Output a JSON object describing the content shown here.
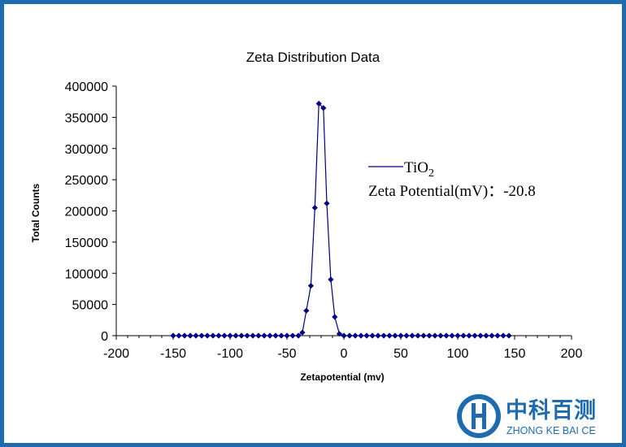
{
  "chart_data": {
    "type": "line",
    "title": "Zeta Distribution Data",
    "xlabel": "Zetapotential (mv)",
    "ylabel": "Total Counts",
    "xlim": [
      -200,
      200
    ],
    "ylim": [
      0,
      400000
    ],
    "xticks": [
      "-200",
      "-150",
      "-100",
      "-50",
      "0",
      "50",
      "100",
      "150",
      "200"
    ],
    "yticks": [
      "0",
      "50000",
      "100000",
      "150000",
      "200000",
      "250000",
      "300000",
      "350000",
      "400000"
    ],
    "series": [
      {
        "name": "TiO2",
        "color": "#00007f",
        "marker": "diamond",
        "x": [
          -150,
          -145,
          -140,
          -135,
          -130,
          -125,
          -120,
          -115,
          -110,
          -105,
          -100,
          -95,
          -90,
          -85,
          -80,
          -75,
          -70,
          -65,
          -60,
          -55,
          -50,
          -45,
          -40,
          -36.5,
          -33,
          -29,
          -25.5,
          -22,
          -18,
          -15,
          -11.5,
          -8,
          -4,
          0,
          5,
          10,
          15,
          20,
          25,
          30,
          35,
          40,
          45,
          50,
          55,
          60,
          65,
          70,
          75,
          80,
          85,
          90,
          95,
          100,
          105,
          110,
          115,
          120,
          125,
          130,
          135,
          140,
          145
        ],
        "y": [
          0,
          0,
          0,
          0,
          0,
          0,
          0,
          0,
          0,
          0,
          0,
          0,
          0,
          0,
          0,
          0,
          0,
          0,
          0,
          0,
          0,
          0,
          0,
          5000,
          40000,
          80000,
          205000,
          372000,
          365000,
          212000,
          90000,
          30000,
          3000,
          0,
          0,
          0,
          0,
          0,
          0,
          0,
          0,
          0,
          0,
          0,
          0,
          0,
          0,
          0,
          0,
          0,
          0,
          0,
          0,
          0,
          0,
          0,
          0,
          0,
          0,
          0,
          0,
          0,
          0
        ]
      }
    ],
    "legend": {
      "series_prefix": "TiO",
      "series_subscript": "2",
      "annotation_label": "Zeta Potential(mV)：",
      "annotation_value": "-20.8"
    },
    "grid": false
  },
  "logo": {
    "chinese": "中科百测",
    "english": "ZHONG KE BAI CE",
    "color": "#1e6bb0"
  }
}
